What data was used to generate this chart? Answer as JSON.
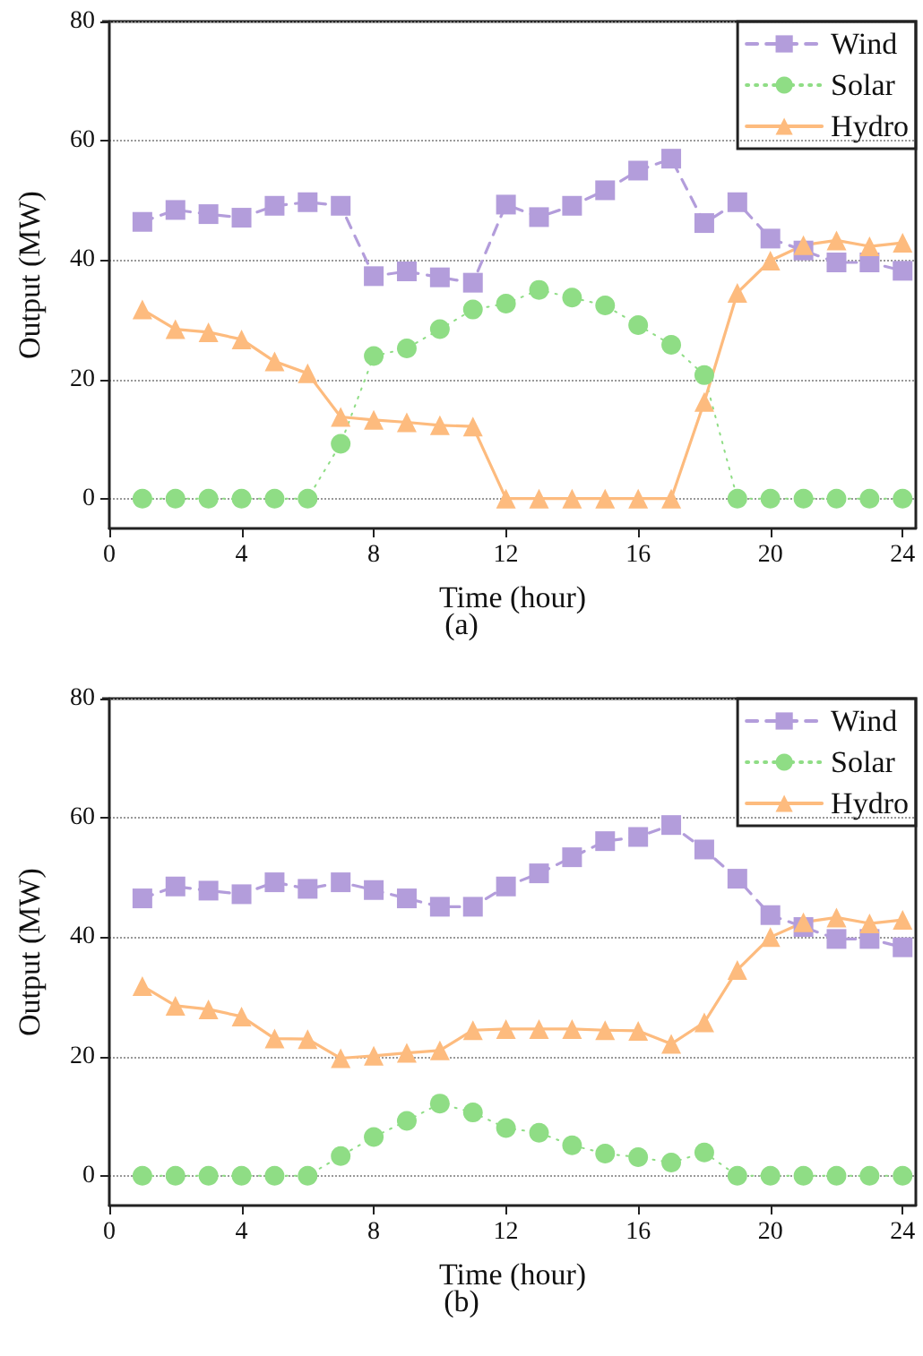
{
  "chart_data": [
    {
      "type": "line",
      "xlabel": "Time (hour)",
      "ylabel": "Output (MW)",
      "annotations": [
        "(a)"
      ],
      "x": [
        1,
        2,
        3,
        4,
        5,
        6,
        7,
        8,
        9,
        10,
        11,
        12,
        13,
        14,
        15,
        16,
        17,
        18,
        19,
        20,
        21,
        22,
        23,
        24
      ],
      "xlim": [
        0,
        24.4
      ],
      "xticks": [
        0,
        4,
        8,
        12,
        16,
        20,
        24
      ],
      "ylim": [
        -5,
        80
      ],
      "yticks": [
        0,
        20,
        40,
        60,
        80
      ],
      "grid": "y",
      "legend": "top right",
      "series": [
        {
          "name": "Wind",
          "color": "#b39ddb",
          "marker": "square",
          "line_style": "dashed",
          "values": [
            46.4,
            48.4,
            47.7,
            47.1,
            49.1,
            49.7,
            49.1,
            37.3,
            38.1,
            37.1,
            36.2,
            49.3,
            47.2,
            49.1,
            51.7,
            55.0,
            57.0,
            46.2,
            49.7,
            43.6,
            41.6,
            39.6,
            39.6,
            38.2
          ]
        },
        {
          "name": "Solar",
          "color": "#8fdd85",
          "marker": "circle",
          "line_style": "dotted",
          "values": [
            0,
            0,
            0,
            0,
            0,
            0,
            9.2,
            23.9,
            25.2,
            28.4,
            31.7,
            32.7,
            35.0,
            33.7,
            32.4,
            29.1,
            25.8,
            20.7,
            0,
            0,
            0,
            0,
            0,
            0
          ]
        },
        {
          "name": "Hydro",
          "color": "#fdbb7e",
          "marker": "triangle",
          "line_style": "solid",
          "values": [
            31.7,
            28.4,
            27.9,
            26.7,
            23.0,
            21.0,
            13.7,
            13.2,
            12.8,
            12.3,
            12.1,
            0,
            0,
            0,
            0,
            0,
            0,
            16.2,
            34.5,
            39.9,
            42.5,
            43.3,
            42.3,
            42.9
          ]
        }
      ]
    },
    {
      "type": "line",
      "xlabel": "Time (hour)",
      "ylabel": "Output (MW)",
      "annotations": [
        "(b)"
      ],
      "x": [
        1,
        2,
        3,
        4,
        5,
        6,
        7,
        8,
        9,
        10,
        11,
        12,
        13,
        14,
        15,
        16,
        17,
        18,
        19,
        20,
        21,
        22,
        23,
        24
      ],
      "xlim": [
        0,
        24.4
      ],
      "xticks": [
        0,
        4,
        8,
        12,
        16,
        20,
        24
      ],
      "ylim": [
        -5,
        80
      ],
      "yticks": [
        0,
        20,
        40,
        60,
        80
      ],
      "grid": "y",
      "legend": "top right",
      "series": [
        {
          "name": "Wind",
          "color": "#b39ddb",
          "marker": "square",
          "line_style": "dashed",
          "values": [
            46.5,
            48.5,
            47.8,
            47.2,
            49.2,
            48.1,
            49.2,
            47.9,
            46.5,
            45.1,
            45.1,
            48.5,
            50.7,
            53.4,
            56.1,
            56.8,
            58.8,
            54.7,
            49.8,
            43.7,
            41.7,
            39.7,
            39.7,
            38.3
          ]
        },
        {
          "name": "Solar",
          "color": "#8fdd85",
          "marker": "circle",
          "line_style": "dotted",
          "values": [
            0,
            0,
            0,
            0,
            0,
            0,
            3.3,
            6.5,
            9.2,
            12.1,
            10.6,
            8.0,
            7.2,
            5.1,
            3.7,
            3.1,
            2.2,
            3.9,
            0,
            0,
            0,
            0,
            0,
            0
          ]
        },
        {
          "name": "Hydro",
          "color": "#fdbb7e",
          "marker": "triangle",
          "line_style": "solid",
          "values": [
            31.8,
            28.5,
            27.9,
            26.7,
            23.0,
            22.9,
            19.7,
            20.1,
            20.6,
            21.0,
            24.4,
            24.6,
            24.6,
            24.6,
            24.4,
            24.3,
            22.1,
            25.7,
            34.5,
            40.0,
            42.5,
            43.3,
            42.3,
            42.9
          ]
        }
      ]
    }
  ]
}
